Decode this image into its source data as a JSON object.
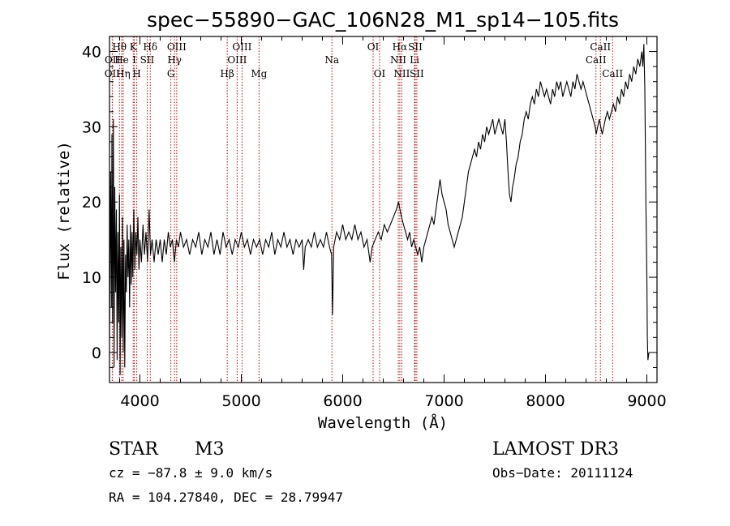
{
  "chart_data": {
    "type": "line",
    "title": "spec−55890−GAC_106N28_M1_sp14−105.fits",
    "xlabel": "Wavelength (Å)",
    "ylabel": "Flux (relative)",
    "xlim": [
      3700,
      9100
    ],
    "ylim": [
      -4,
      42
    ],
    "x_ticks": [
      4000,
      5000,
      6000,
      7000,
      8000,
      9000
    ],
    "y_ticks": [
      0,
      10,
      20,
      30,
      40
    ],
    "colors": {
      "spectrum": "#000000",
      "line_markers": "#cc0000",
      "axes": "#000000"
    },
    "series": [
      {
        "name": "spectrum",
        "points": [
          [
            3700,
            2
          ],
          [
            3710,
            24
          ],
          [
            3718,
            6
          ],
          [
            3724,
            29
          ],
          [
            3730,
            4
          ],
          [
            3738,
            31
          ],
          [
            3745,
            -2
          ],
          [
            3752,
            22
          ],
          [
            3760,
            8
          ],
          [
            3768,
            19
          ],
          [
            3775,
            -1
          ],
          [
            3782,
            16
          ],
          [
            3790,
            4
          ],
          [
            3798,
            21
          ],
          [
            3805,
            -3
          ],
          [
            3812,
            14
          ],
          [
            3820,
            2
          ],
          [
            3828,
            18
          ],
          [
            3835,
            0
          ],
          [
            3842,
            15
          ],
          [
            3850,
            -2
          ],
          [
            3858,
            13
          ],
          [
            3866,
            8
          ],
          [
            3874,
            17
          ],
          [
            3882,
            10
          ],
          [
            3890,
            15
          ],
          [
            3898,
            6
          ],
          [
            3906,
            17
          ],
          [
            3914,
            9
          ],
          [
            3922,
            16
          ],
          [
            3930,
            10
          ],
          [
            3940,
            19
          ],
          [
            3950,
            11
          ],
          [
            3960,
            16
          ],
          [
            3970,
            13
          ],
          [
            3980,
            18
          ],
          [
            3990,
            11
          ],
          [
            4000,
            15
          ],
          [
            4015,
            12
          ],
          [
            4030,
            17
          ],
          [
            4045,
            13
          ],
          [
            4060,
            16
          ],
          [
            4075,
            12
          ],
          [
            4090,
            19
          ],
          [
            4105,
            13
          ],
          [
            4120,
            15
          ],
          [
            4140,
            12
          ],
          [
            4160,
            15
          ],
          [
            4180,
            13
          ],
          [
            4200,
            15
          ],
          [
            4220,
            12
          ],
          [
            4240,
            15
          ],
          [
            4260,
            13
          ],
          [
            4280,
            16
          ],
          [
            4300,
            14
          ],
          [
            4320,
            15
          ],
          [
            4340,
            12
          ],
          [
            4360,
            15
          ],
          [
            4380,
            14
          ],
          [
            4400,
            16
          ],
          [
            4430,
            14
          ],
          [
            4460,
            15
          ],
          [
            4490,
            13
          ],
          [
            4520,
            15
          ],
          [
            4550,
            14
          ],
          [
            4580,
            16
          ],
          [
            4610,
            13
          ],
          [
            4640,
            15
          ],
          [
            4670,
            14
          ],
          [
            4700,
            16
          ],
          [
            4730,
            13
          ],
          [
            4760,
            15
          ],
          [
            4790,
            13
          ],
          [
            4820,
            16
          ],
          [
            4850,
            14
          ],
          [
            4880,
            15
          ],
          [
            4910,
            13
          ],
          [
            4940,
            15
          ],
          [
            4970,
            14
          ],
          [
            5000,
            16
          ],
          [
            5030,
            14
          ],
          [
            5060,
            15
          ],
          [
            5090,
            13
          ],
          [
            5120,
            15
          ],
          [
            5150,
            14
          ],
          [
            5180,
            15
          ],
          [
            5210,
            13
          ],
          [
            5240,
            15
          ],
          [
            5270,
            14
          ],
          [
            5300,
            16
          ],
          [
            5330,
            13
          ],
          [
            5360,
            15
          ],
          [
            5390,
            14
          ],
          [
            5420,
            16
          ],
          [
            5450,
            14
          ],
          [
            5480,
            15
          ],
          [
            5510,
            13
          ],
          [
            5540,
            15
          ],
          [
            5570,
            14
          ],
          [
            5600,
            15
          ],
          [
            5615,
            11
          ],
          [
            5630,
            14
          ],
          [
            5660,
            15
          ],
          [
            5690,
            14
          ],
          [
            5720,
            16
          ],
          [
            5750,
            14
          ],
          [
            5780,
            15
          ],
          [
            5810,
            14
          ],
          [
            5840,
            16
          ],
          [
            5870,
            14
          ],
          [
            5890,
            13
          ],
          [
            5900,
            5
          ],
          [
            5905,
            9
          ],
          [
            5910,
            14
          ],
          [
            5940,
            16
          ],
          [
            5970,
            15
          ],
          [
            6000,
            17
          ],
          [
            6030,
            15
          ],
          [
            6060,
            16
          ],
          [
            6090,
            15
          ],
          [
            6120,
            17
          ],
          [
            6150,
            15
          ],
          [
            6180,
            16
          ],
          [
            6210,
            14
          ],
          [
            6240,
            15
          ],
          [
            6270,
            12
          ],
          [
            6290,
            14
          ],
          [
            6320,
            15
          ],
          [
            6350,
            16
          ],
          [
            6380,
            15
          ],
          [
            6410,
            17
          ],
          [
            6440,
            16
          ],
          [
            6470,
            17
          ],
          [
            6500,
            18
          ],
          [
            6530,
            19
          ],
          [
            6550,
            20
          ],
          [
            6565,
            19
          ],
          [
            6580,
            18
          ],
          [
            6600,
            17
          ],
          [
            6620,
            16
          ],
          [
            6640,
            15
          ],
          [
            6660,
            16
          ],
          [
            6680,
            14
          ],
          [
            6700,
            15
          ],
          [
            6720,
            14
          ],
          [
            6740,
            13
          ],
          [
            6760,
            14
          ],
          [
            6780,
            12
          ],
          [
            6800,
            14
          ],
          [
            6820,
            15
          ],
          [
            6840,
            16
          ],
          [
            6860,
            17
          ],
          [
            6880,
            18
          ],
          [
            6900,
            17
          ],
          [
            6920,
            19
          ],
          [
            6940,
            21
          ],
          [
            6960,
            23
          ],
          [
            6980,
            21
          ],
          [
            7000,
            20
          ],
          [
            7020,
            19
          ],
          [
            7040,
            17
          ],
          [
            7060,
            16
          ],
          [
            7080,
            15
          ],
          [
            7100,
            14
          ],
          [
            7120,
            15
          ],
          [
            7140,
            16
          ],
          [
            7160,
            17
          ],
          [
            7180,
            18
          ],
          [
            7200,
            20
          ],
          [
            7220,
            22
          ],
          [
            7240,
            24
          ],
          [
            7260,
            25
          ],
          [
            7280,
            26
          ],
          [
            7300,
            27
          ],
          [
            7320,
            26
          ],
          [
            7340,
            28
          ],
          [
            7360,
            27
          ],
          [
            7380,
            29
          ],
          [
            7400,
            28
          ],
          [
            7420,
            30
          ],
          [
            7440,
            29
          ],
          [
            7460,
            30
          ],
          [
            7480,
            31
          ],
          [
            7500,
            29
          ],
          [
            7520,
            30
          ],
          [
            7540,
            31
          ],
          [
            7560,
            30
          ],
          [
            7580,
            29
          ],
          [
            7600,
            31
          ],
          [
            7615,
            28
          ],
          [
            7630,
            24
          ],
          [
            7645,
            21
          ],
          [
            7660,
            20
          ],
          [
            7675,
            22
          ],
          [
            7690,
            23
          ],
          [
            7710,
            25
          ],
          [
            7730,
            26
          ],
          [
            7750,
            28
          ],
          [
            7770,
            29
          ],
          [
            7790,
            31
          ],
          [
            7810,
            32
          ],
          [
            7830,
            31
          ],
          [
            7850,
            33
          ],
          [
            7870,
            34
          ],
          [
            7890,
            33
          ],
          [
            7910,
            35
          ],
          [
            7930,
            34
          ],
          [
            7950,
            36
          ],
          [
            7970,
            35
          ],
          [
            7990,
            34
          ],
          [
            8010,
            35
          ],
          [
            8030,
            34
          ],
          [
            8050,
            33
          ],
          [
            8070,
            35
          ],
          [
            8090,
            34
          ],
          [
            8110,
            36
          ],
          [
            8130,
            35
          ],
          [
            8150,
            36
          ],
          [
            8170,
            34
          ],
          [
            8190,
            35
          ],
          [
            8210,
            36
          ],
          [
            8230,
            35
          ],
          [
            8250,
            34
          ],
          [
            8270,
            36
          ],
          [
            8290,
            35
          ],
          [
            8310,
            37
          ],
          [
            8330,
            36
          ],
          [
            8350,
            35
          ],
          [
            8370,
            36
          ],
          [
            8390,
            35
          ],
          [
            8410,
            34
          ],
          [
            8430,
            33
          ],
          [
            8450,
            32
          ],
          [
            8470,
            31
          ],
          [
            8490,
            30
          ],
          [
            8500,
            29
          ],
          [
            8515,
            30
          ],
          [
            8530,
            31
          ],
          [
            8545,
            30
          ],
          [
            8560,
            29
          ],
          [
            8575,
            30
          ],
          [
            8590,
            31
          ],
          [
            8610,
            32
          ],
          [
            8630,
            31
          ],
          [
            8650,
            32
          ],
          [
            8670,
            33
          ],
          [
            8690,
            32
          ],
          [
            8710,
            34
          ],
          [
            8730,
            33
          ],
          [
            8750,
            35
          ],
          [
            8770,
            34
          ],
          [
            8790,
            36
          ],
          [
            8810,
            35
          ],
          [
            8830,
            37
          ],
          [
            8850,
            36
          ],
          [
            8870,
            38
          ],
          [
            8890,
            37
          ],
          [
            8910,
            39
          ],
          [
            8930,
            38
          ],
          [
            8950,
            40
          ],
          [
            8960,
            38
          ],
          [
            8970,
            41
          ],
          [
            8980,
            35
          ],
          [
            8990,
            20
          ],
          [
            9000,
            10
          ],
          [
            9005,
            2
          ],
          [
            9010,
            -1
          ],
          [
            9020,
            0
          ]
        ]
      }
    ],
    "annotations": [
      {
        "name": "OII",
        "wavelength": 3727,
        "row": 3
      },
      {
        "name": "OII",
        "wavelength": 3729,
        "row": 2
      },
      {
        "name": "Hθ",
        "wavelength": 3798,
        "row": 1
      },
      {
        "name": "He",
        "wavelength": 3820,
        "row": 2
      },
      {
        "name": "Hη",
        "wavelength": 3835,
        "row": 3
      },
      {
        "name": "K",
        "wavelength": 3934,
        "row": 1
      },
      {
        "name": "I",
        "wavelength": 3945,
        "row": 2
      },
      {
        "name": "H",
        "wavelength": 3969,
        "row": 3
      },
      {
        "name": "SII",
        "wavelength": 4072,
        "row": 2
      },
      {
        "name": "Hδ",
        "wavelength": 4102,
        "row": 1
      },
      {
        "name": "G",
        "wavelength": 4305,
        "row": 3
      },
      {
        "name": "Hγ",
        "wavelength": 4341,
        "row": 2
      },
      {
        "name": "OIII",
        "wavelength": 4363,
        "row": 1
      },
      {
        "name": "Hβ",
        "wavelength": 4861,
        "row": 3
      },
      {
        "name": "OIII",
        "wavelength": 4959,
        "row": 2
      },
      {
        "name": "OIII",
        "wavelength": 5007,
        "row": 1
      },
      {
        "name": "Mg",
        "wavelength": 5175,
        "row": 3
      },
      {
        "name": "Na",
        "wavelength": 5894,
        "row": 2
      },
      {
        "name": "OI",
        "wavelength": 6300,
        "row": 1
      },
      {
        "name": "OI",
        "wavelength": 6364,
        "row": 3
      },
      {
        "name": "NII",
        "wavelength": 6548,
        "row": 2
      },
      {
        "name": "Hα",
        "wavelength": 6563,
        "row": 1
      },
      {
        "name": "NII",
        "wavelength": 6583,
        "row": 3
      },
      {
        "name": "Li",
        "wavelength": 6708,
        "row": 2
      },
      {
        "name": "SII",
        "wavelength": 6716,
        "row": 1
      },
      {
        "name": "SII",
        "wavelength": 6731,
        "row": 3
      },
      {
        "name": "CaII",
        "wavelength": 8498,
        "row": 2
      },
      {
        "name": "CaII",
        "wavelength": 8542,
        "row": 1
      },
      {
        "name": "CaII",
        "wavelength": 8662,
        "row": 3
      }
    ]
  },
  "info": {
    "object_type": "STAR",
    "subclass": "M3",
    "survey": "LAMOST DR3",
    "redshift": "cz = −87.8 ± 9.0 km/s",
    "obs_date": "Obs−Date: 20111124",
    "coords": "RA = 104.27840, DEC =  28.79947"
  }
}
